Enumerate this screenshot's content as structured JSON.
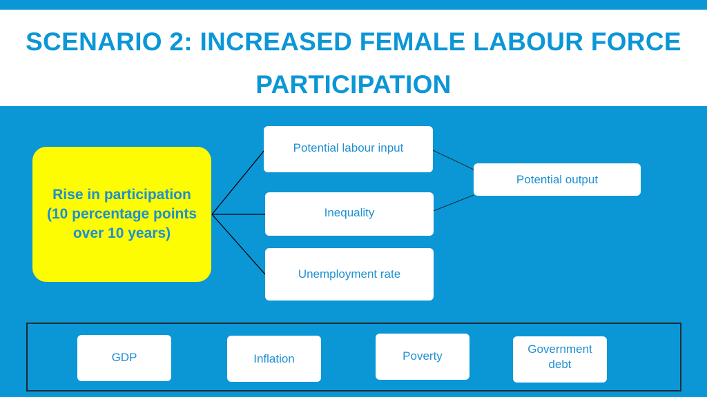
{
  "title": {
    "line1": "SCENARIO 2: INCREASED FEMALE LABOUR FORCE",
    "line2": "PARTICIPATION"
  },
  "root": {
    "line1": "Rise in participation",
    "line2": "(10 percentage points",
    "line3": "over 10 years)"
  },
  "effects": {
    "potential_labour_input": "Potential labour input",
    "inequality": "Inequality",
    "unemployment_rate": "Unemployment rate",
    "potential_output": "Potential output"
  },
  "outcomes": {
    "gdp": "GDP",
    "inflation": "Inflation",
    "poverty": "Poverty",
    "government_debt_line1": "Government",
    "government_debt_line2": "debt"
  },
  "colors": {
    "background": "#0b96d6",
    "title_text": "#0b96d6",
    "root_fill": "#fdfc02",
    "box_text": "#1e8fd0"
  }
}
